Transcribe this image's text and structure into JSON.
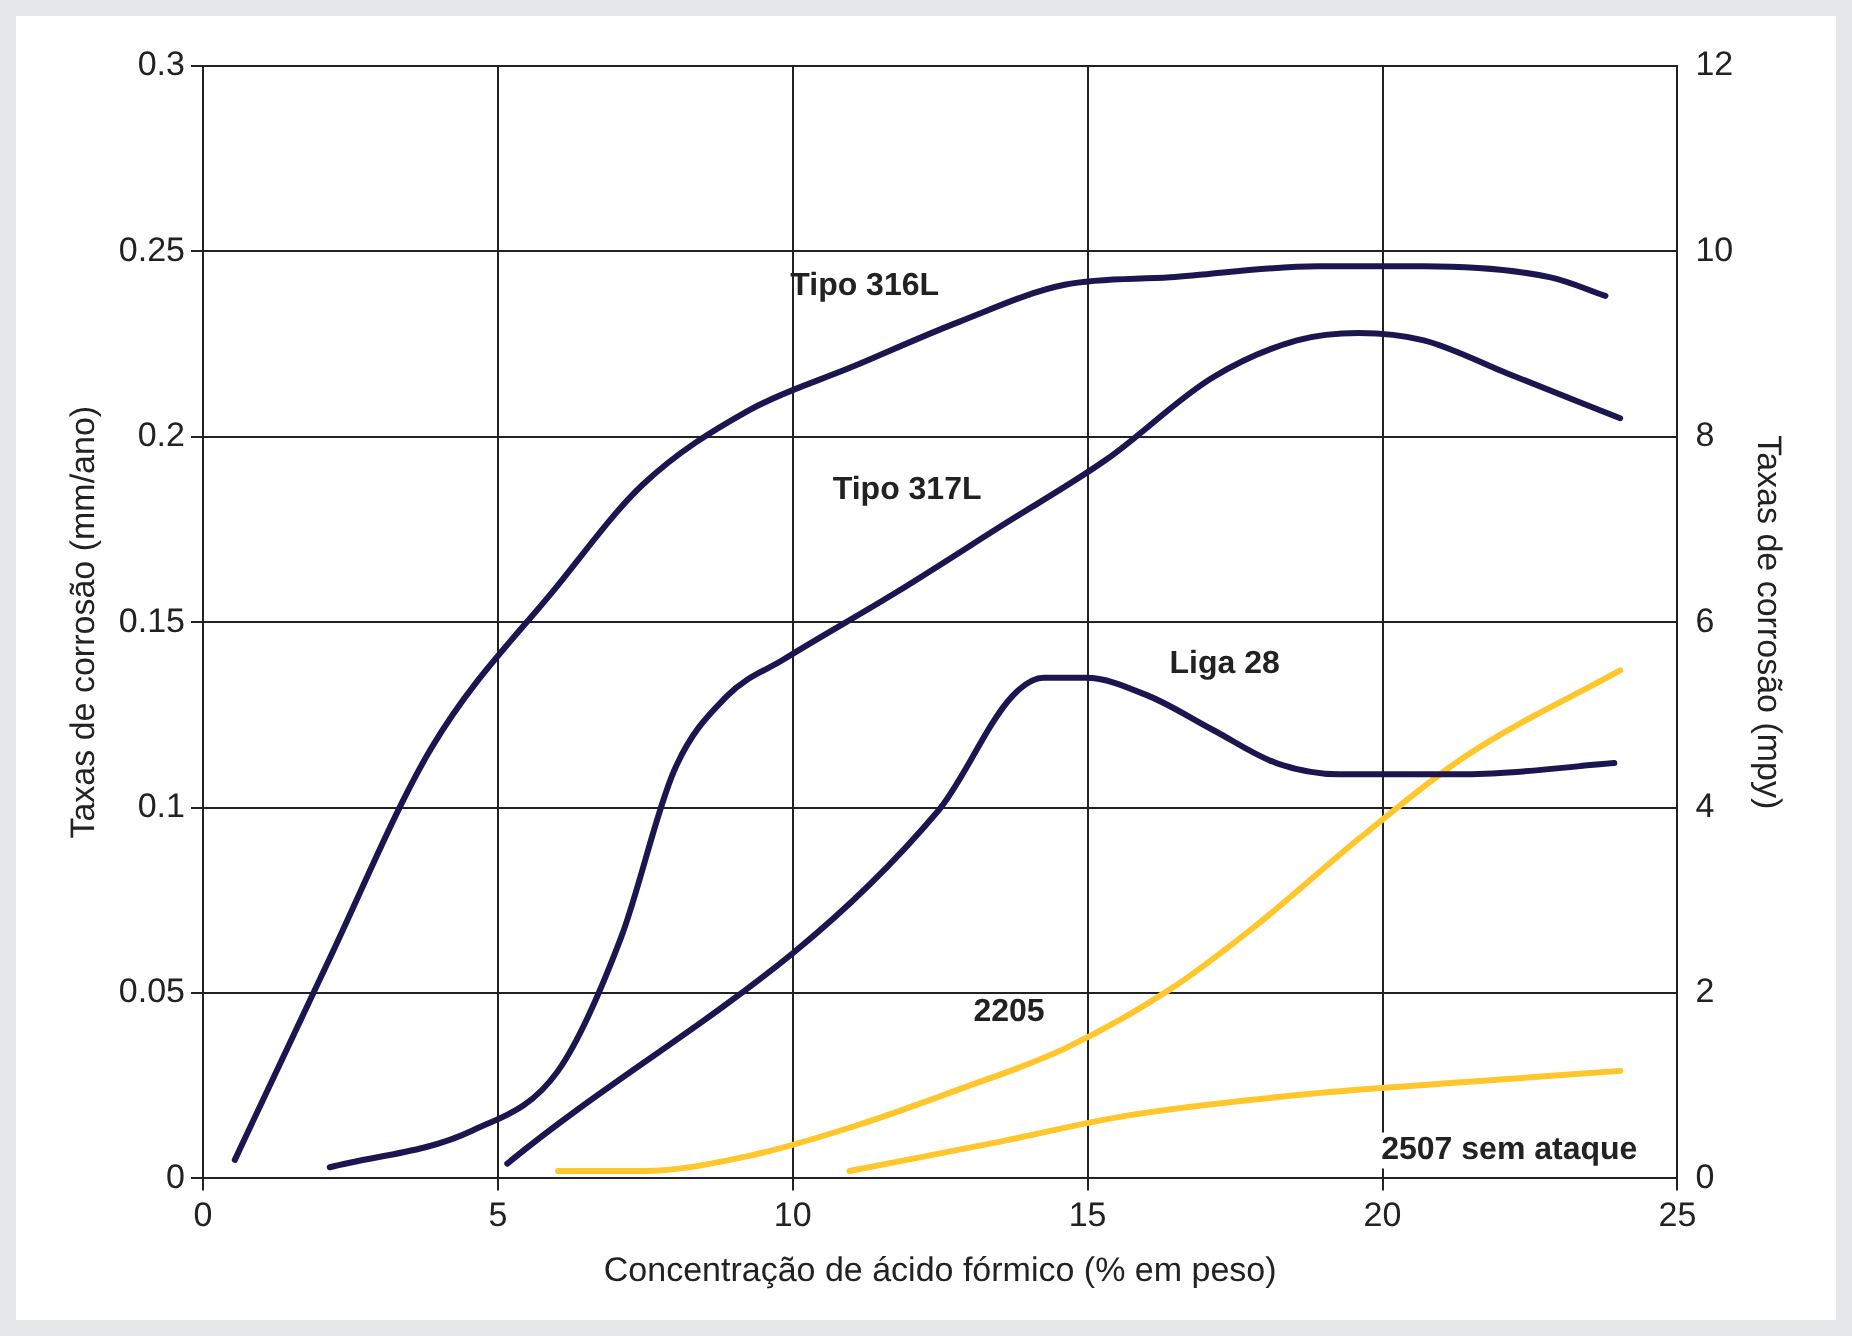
{
  "chart_data": {
    "type": "line",
    "xlabel": "Concentração de ácido fórmico (% em peso)",
    "ylabel": "Taxas de corrosão (mm/ano)",
    "y2label": "Taxas de corrosão (mpy)",
    "xlim": [
      0,
      25
    ],
    "xticks": [
      0,
      5,
      10,
      15,
      20,
      25
    ],
    "ylim": [
      0,
      0.3
    ],
    "yticks": [
      0,
      0.05,
      0.1,
      0.15,
      0.2,
      0.25,
      0.3
    ],
    "y2lim": [
      0,
      12
    ],
    "y2ticks": [
      0,
      2,
      4,
      6,
      8,
      10,
      12
    ],
    "grid": true,
    "legend": false,
    "marker": "none",
    "line_style": "solid",
    "series": [
      {
        "name": "Tipo 316L",
        "color": "#1c1650",
        "x": [
          0.54,
          2.08,
          3.87,
          6.02,
          7.45,
          9.24,
          11.03,
          12.82,
          14.61,
          16.4,
          18.9,
          20.7,
          22.85,
          23.78
        ],
        "values": [
          0.005,
          0.057,
          0.116,
          0.16,
          0.187,
          0.207,
          0.219,
          0.231,
          0.241,
          0.243,
          0.246,
          0.246,
          0.243,
          0.238
        ]
      },
      {
        "name": "Tipo 317L",
        "color": "#1c1650",
        "x": [
          2.15,
          4.58,
          6.02,
          7.09,
          7.99,
          8.88,
          9.85,
          11.75,
          13.54,
          15.33,
          17.12,
          18.55,
          19.6,
          20.7,
          22.13,
          24.03
        ],
        "values": [
          0.003,
          0.013,
          0.029,
          0.065,
          0.11,
          0.13,
          0.14,
          0.158,
          0.176,
          0.194,
          0.216,
          0.226,
          0.228,
          0.226,
          0.217,
          0.205
        ]
      },
      {
        "name": "Liga 28",
        "color": "#1c1650",
        "x": [
          5.16,
          12.46,
          13.72,
          14.26,
          14.97,
          16.05,
          17.12,
          18.2,
          19.27,
          21.42,
          23.93
        ],
        "values": [
          0.004,
          0.099,
          0.13,
          0.135,
          0.135,
          0.13,
          0.121,
          0.112,
          0.109,
          0.109,
          0.112
        ]
      },
      {
        "name": "2205",
        "color": "#ffc72c",
        "x": [
          6.02,
          7.45,
          9.24,
          11.03,
          12.82,
          14.61,
          16.4,
          17.84,
          19.63,
          21.42,
          24.03
        ],
        "values": [
          0.002,
          0.002,
          0.006,
          0.014,
          0.024,
          0.035,
          0.051,
          0.068,
          0.092,
          0.114,
          0.137
        ]
      },
      {
        "color": "#ffc72c",
        "x": [
          10.96,
          13.54,
          15.69,
          18.91,
          21.42,
          24.03
        ],
        "values": [
          0.002,
          0.01,
          0.017,
          0.023,
          0.026,
          0.029
        ]
      }
    ],
    "annotations": [
      "2507 sem ataque"
    ]
  }
}
